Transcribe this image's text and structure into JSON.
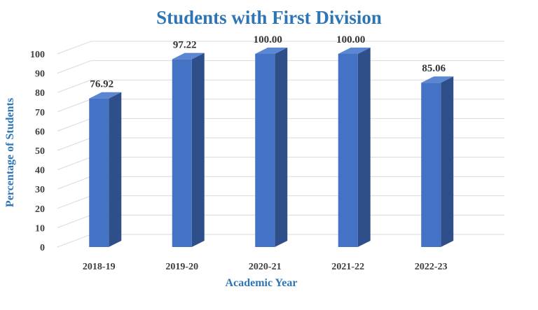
{
  "chart_data": {
    "type": "bar",
    "title": "Students with First Division",
    "xlabel": "Academic Year",
    "ylabel": "Percentage of Students",
    "categories": [
      "2018-19",
      "2019-20",
      "2020-21",
      "2021-22",
      "2022-23"
    ],
    "values": [
      76.92,
      97.22,
      100.0,
      100.0,
      85.06
    ],
    "data_labels": [
      "76.92",
      "97.22",
      "100.00",
      "100.00",
      "85.06"
    ],
    "y_ticks": [
      "0",
      "10",
      "20",
      "30",
      "40",
      "50",
      "60",
      "70",
      "80",
      "90",
      "100"
    ],
    "ylim": [
      0,
      100
    ],
    "grid": true,
    "legend": "none",
    "style": "3d-column",
    "colors": {
      "title": "#2E75B6",
      "axis_title": "#2E75B6",
      "bar_front": "#4472C4",
      "bar_side": "#2F4F8A",
      "bar_top": "#5B86D1",
      "grid": "#D9D9D9"
    }
  }
}
